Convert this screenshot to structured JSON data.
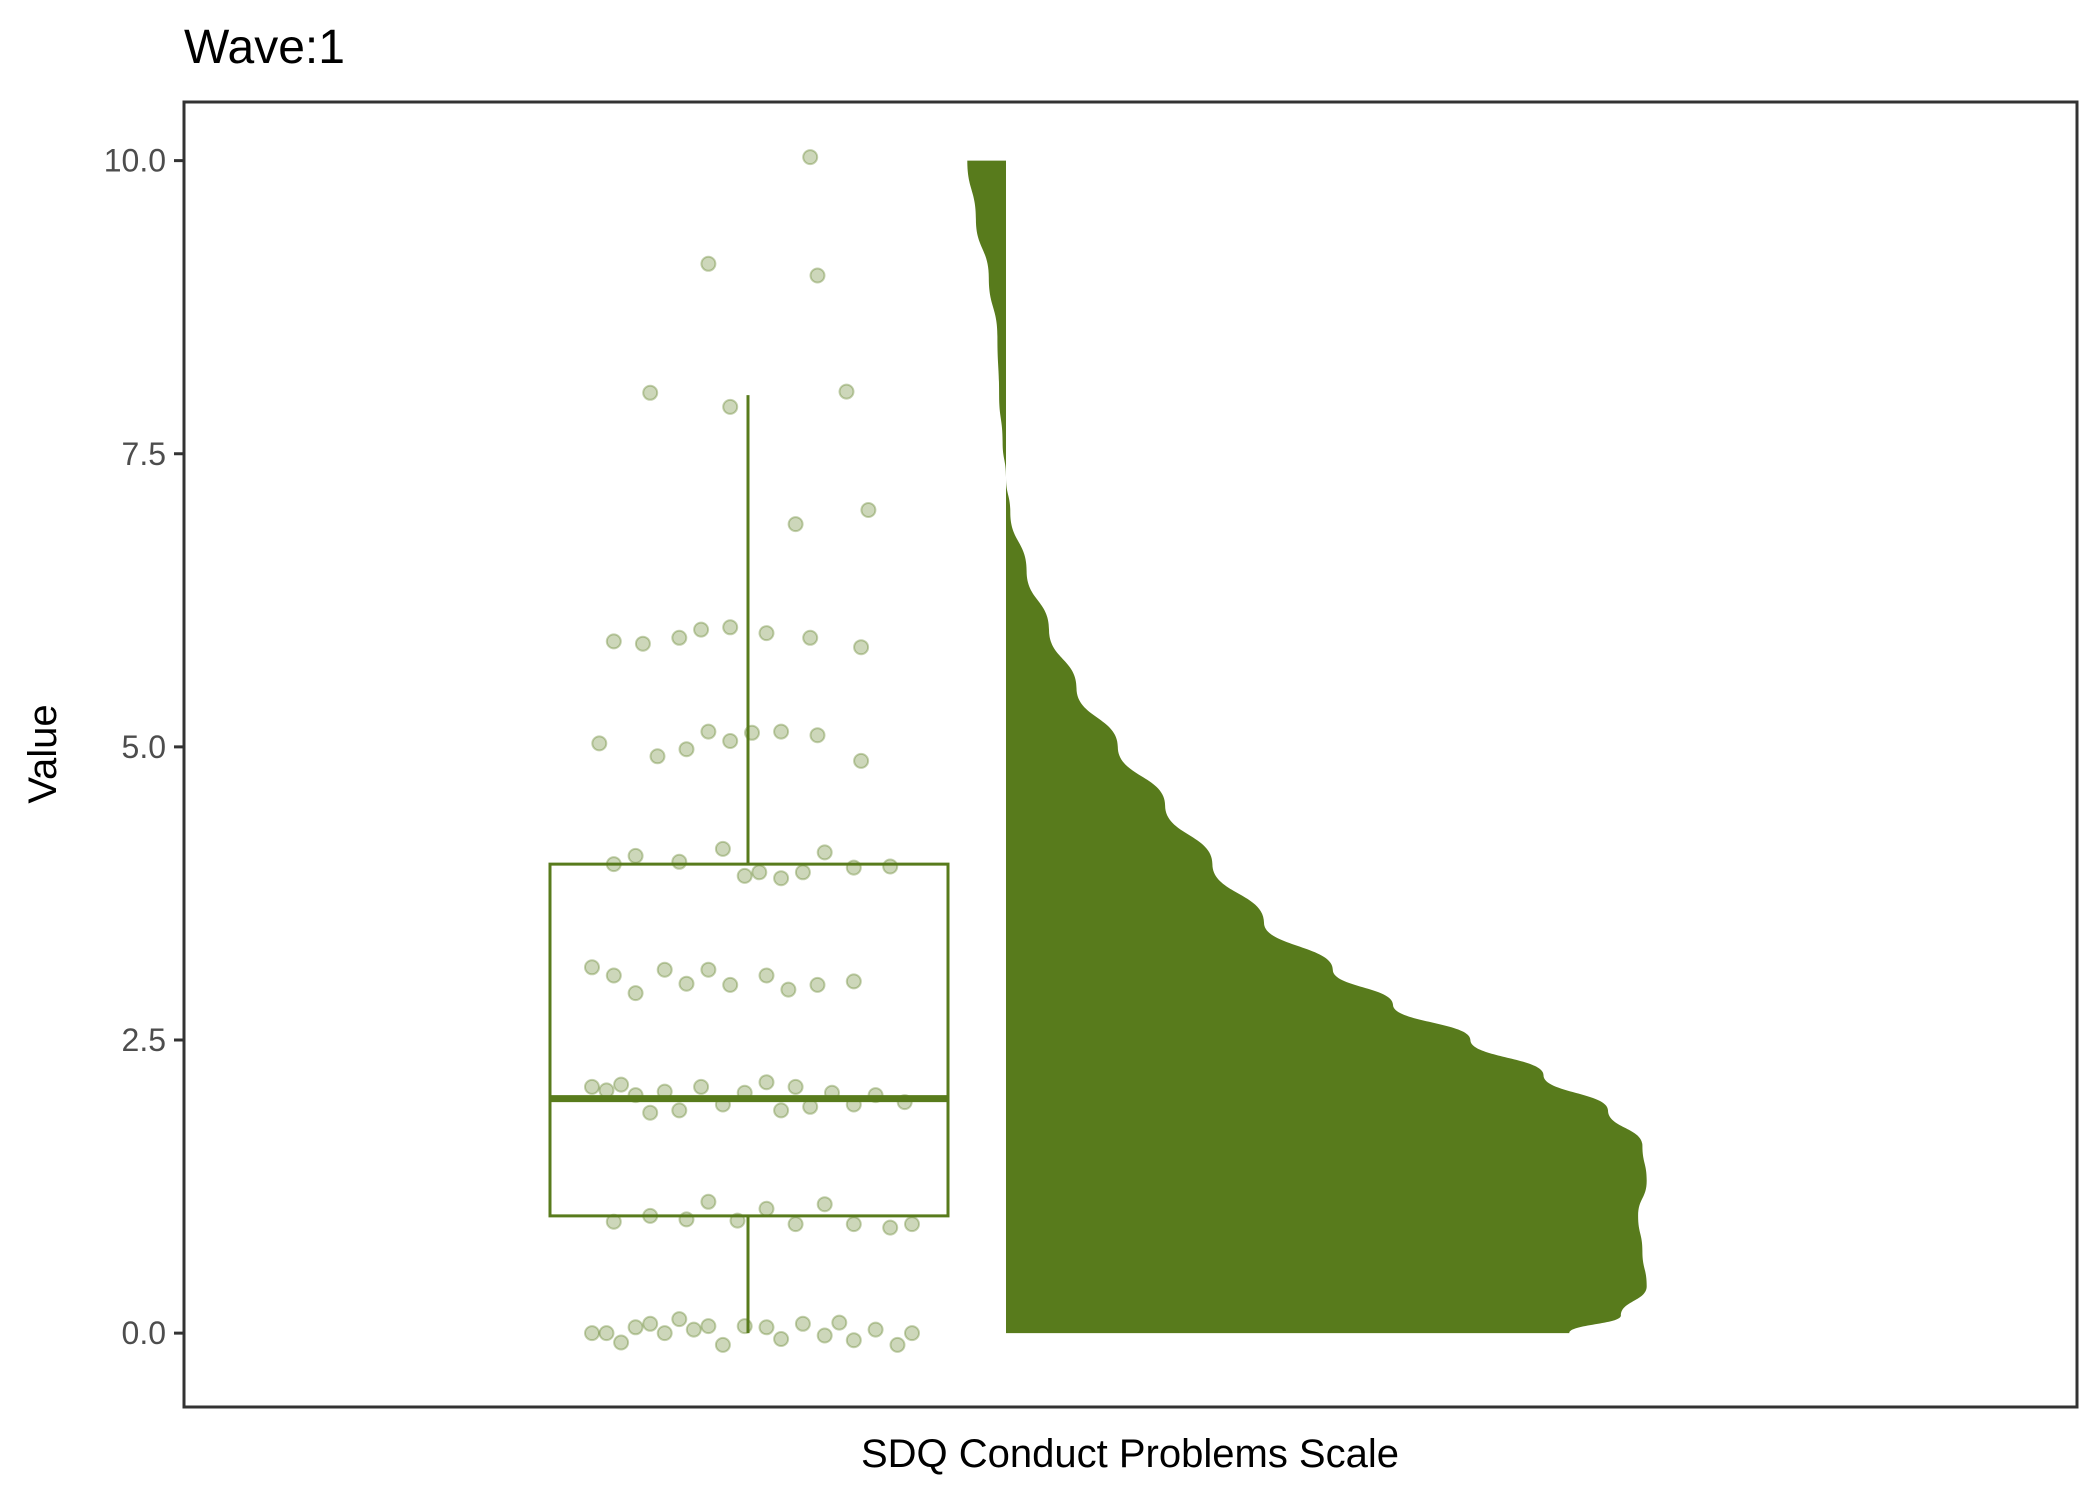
{
  "chart_data": {
    "type": "raincloud",
    "title": "Wave:1",
    "xlabel": "SDQ Conduct Problems Scale",
    "ylabel": "Value",
    "ylim": [
      -0.63,
      10.5
    ],
    "yticks": [
      0.0,
      2.5,
      5.0,
      7.5,
      10.0
    ],
    "ytick_labels": [
      "0.0",
      "2.5",
      "5.0",
      "7.5",
      "10.0"
    ],
    "colors": {
      "fill": "#587b1c",
      "points": "#587b1c",
      "frame": "#333333"
    },
    "boxplot": {
      "min": 0,
      "q1": 1,
      "median": 2,
      "q3": 4,
      "max": 8
    },
    "density": {
      "y": [
        0,
        0.15,
        0.4,
        0.7,
        1.0,
        1.3,
        1.6,
        1.9,
        2.2,
        2.5,
        2.8,
        3.1,
        3.5,
        4.0,
        4.5,
        5.0,
        5.5,
        6.0,
        6.5,
        7.0,
        7.3,
        7.6,
        8.0,
        8.5,
        9.0,
        9.5,
        10.0
      ],
      "density": [
        0.655,
        0.715,
        0.745,
        0.74,
        0.735,
        0.745,
        0.74,
        0.7,
        0.625,
        0.54,
        0.45,
        0.38,
        0.3,
        0.24,
        0.185,
        0.13,
        0.082,
        0.05,
        0.024,
        0.005,
        0.0,
        -0.004,
        -0.008,
        -0.01,
        -0.02,
        -0.035,
        -0.045
      ],
      "density_note": "relative half-violin width (0 = left baseline at 0.70 of panel, 1 = full panel width)"
    },
    "points": [
      {
        "x": 0.54,
        "y": 0.0
      },
      {
        "x": 0.56,
        "y": 0.0
      },
      {
        "x": 0.58,
        "y": -0.08
      },
      {
        "x": 0.6,
        "y": 0.05
      },
      {
        "x": 0.62,
        "y": 0.08
      },
      {
        "x": 0.64,
        "y": 0.0
      },
      {
        "x": 0.66,
        "y": 0.12
      },
      {
        "x": 0.68,
        "y": 0.03
      },
      {
        "x": 0.7,
        "y": 0.06
      },
      {
        "x": 0.72,
        "y": -0.1
      },
      {
        "x": 0.75,
        "y": 0.06
      },
      {
        "x": 0.78,
        "y": 0.05
      },
      {
        "x": 0.8,
        "y": -0.05
      },
      {
        "x": 0.83,
        "y": 0.08
      },
      {
        "x": 0.86,
        "y": -0.02
      },
      {
        "x": 0.88,
        "y": 0.09
      },
      {
        "x": 0.9,
        "y": -0.06
      },
      {
        "x": 0.93,
        "y": 0.03
      },
      {
        "x": 0.96,
        "y": -0.1
      },
      {
        "x": 0.98,
        "y": 0.0
      },
      {
        "x": 0.57,
        "y": 0.95
      },
      {
        "x": 0.62,
        "y": 1.0
      },
      {
        "x": 0.67,
        "y": 0.97
      },
      {
        "x": 0.7,
        "y": 1.12
      },
      {
        "x": 0.74,
        "y": 0.96
      },
      {
        "x": 0.78,
        "y": 1.06
      },
      {
        "x": 0.82,
        "y": 0.93
      },
      {
        "x": 0.86,
        "y": 1.1
      },
      {
        "x": 0.9,
        "y": 0.93
      },
      {
        "x": 0.95,
        "y": 0.9
      },
      {
        "x": 0.98,
        "y": 0.93
      },
      {
        "x": 0.54,
        "y": 2.1
      },
      {
        "x": 0.56,
        "y": 2.07
      },
      {
        "x": 0.58,
        "y": 2.12
      },
      {
        "x": 0.6,
        "y": 2.03
      },
      {
        "x": 0.62,
        "y": 1.88
      },
      {
        "x": 0.64,
        "y": 2.06
      },
      {
        "x": 0.66,
        "y": 1.9
      },
      {
        "x": 0.69,
        "y": 2.1
      },
      {
        "x": 0.72,
        "y": 1.95
      },
      {
        "x": 0.75,
        "y": 2.05
      },
      {
        "x": 0.78,
        "y": 2.14
      },
      {
        "x": 0.8,
        "y": 1.9
      },
      {
        "x": 0.82,
        "y": 2.1
      },
      {
        "x": 0.84,
        "y": 1.93
      },
      {
        "x": 0.87,
        "y": 2.05
      },
      {
        "x": 0.9,
        "y": 1.95
      },
      {
        "x": 0.93,
        "y": 2.03
      },
      {
        "x": 0.97,
        "y": 1.97
      },
      {
        "x": 0.54,
        "y": 3.12
      },
      {
        "x": 0.57,
        "y": 3.05
      },
      {
        "x": 0.6,
        "y": 2.9
      },
      {
        "x": 0.64,
        "y": 3.1
      },
      {
        "x": 0.67,
        "y": 2.98
      },
      {
        "x": 0.7,
        "y": 3.1
      },
      {
        "x": 0.73,
        "y": 2.97
      },
      {
        "x": 0.78,
        "y": 3.05
      },
      {
        "x": 0.81,
        "y": 2.93
      },
      {
        "x": 0.85,
        "y": 2.97
      },
      {
        "x": 0.9,
        "y": 3.0
      },
      {
        "x": 0.57,
        "y": 4.0
      },
      {
        "x": 0.6,
        "y": 4.07
      },
      {
        "x": 0.66,
        "y": 4.02
      },
      {
        "x": 0.72,
        "y": 4.13
      },
      {
        "x": 0.75,
        "y": 3.9
      },
      {
        "x": 0.77,
        "y": 3.93
      },
      {
        "x": 0.8,
        "y": 3.88
      },
      {
        "x": 0.83,
        "y": 3.93
      },
      {
        "x": 0.86,
        "y": 4.1
      },
      {
        "x": 0.9,
        "y": 3.97
      },
      {
        "x": 0.95,
        "y": 3.98
      },
      {
        "x": 0.55,
        "y": 5.03
      },
      {
        "x": 0.63,
        "y": 4.92
      },
      {
        "x": 0.67,
        "y": 4.98
      },
      {
        "x": 0.7,
        "y": 5.13
      },
      {
        "x": 0.73,
        "y": 5.05
      },
      {
        "x": 0.76,
        "y": 5.12
      },
      {
        "x": 0.8,
        "y": 5.13
      },
      {
        "x": 0.85,
        "y": 5.1
      },
      {
        "x": 0.91,
        "y": 4.88
      },
      {
        "x": 0.57,
        "y": 5.9
      },
      {
        "x": 0.61,
        "y": 5.88
      },
      {
        "x": 0.66,
        "y": 5.93
      },
      {
        "x": 0.69,
        "y": 6.0
      },
      {
        "x": 0.73,
        "y": 6.02
      },
      {
        "x": 0.78,
        "y": 5.97
      },
      {
        "x": 0.84,
        "y": 5.93
      },
      {
        "x": 0.91,
        "y": 5.85
      },
      {
        "x": 0.82,
        "y": 6.9
      },
      {
        "x": 0.92,
        "y": 7.02
      },
      {
        "x": 0.62,
        "y": 8.02
      },
      {
        "x": 0.73,
        "y": 7.9
      },
      {
        "x": 0.89,
        "y": 8.03
      },
      {
        "x": 0.7,
        "y": 9.12
      },
      {
        "x": 0.85,
        "y": 9.02
      },
      {
        "x": 0.84,
        "y": 10.03
      }
    ]
  }
}
